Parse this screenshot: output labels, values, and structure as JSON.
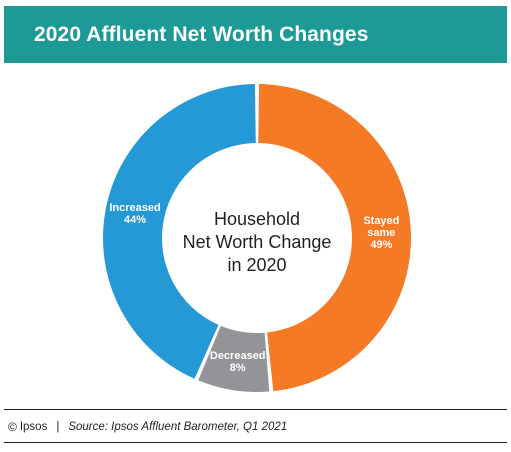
{
  "header": {
    "title": "2020 Affluent Net Worth Changes",
    "background_color": "#1e9a96"
  },
  "chart_data": {
    "type": "pie",
    "donut": true,
    "center_label": [
      "Household",
      "Net Worth Change",
      "in 2020"
    ],
    "slices": [
      {
        "label": [
          "Stayed",
          "same"
        ],
        "value": 49,
        "value_label": "49%",
        "color": "#f47a25"
      },
      {
        "label": [
          "Decreased"
        ],
        "value": 8,
        "value_label": "8%",
        "color": "#929497"
      },
      {
        "label": [
          "Increased"
        ],
        "value": 44,
        "value_label": "44%",
        "color": "#2598d6"
      }
    ]
  },
  "footer": {
    "copyright_symbol": "©",
    "brand": "Ipsos",
    "separator": "|",
    "source": "Source: Ipsos Affluent Barometer, Q1 2021"
  }
}
